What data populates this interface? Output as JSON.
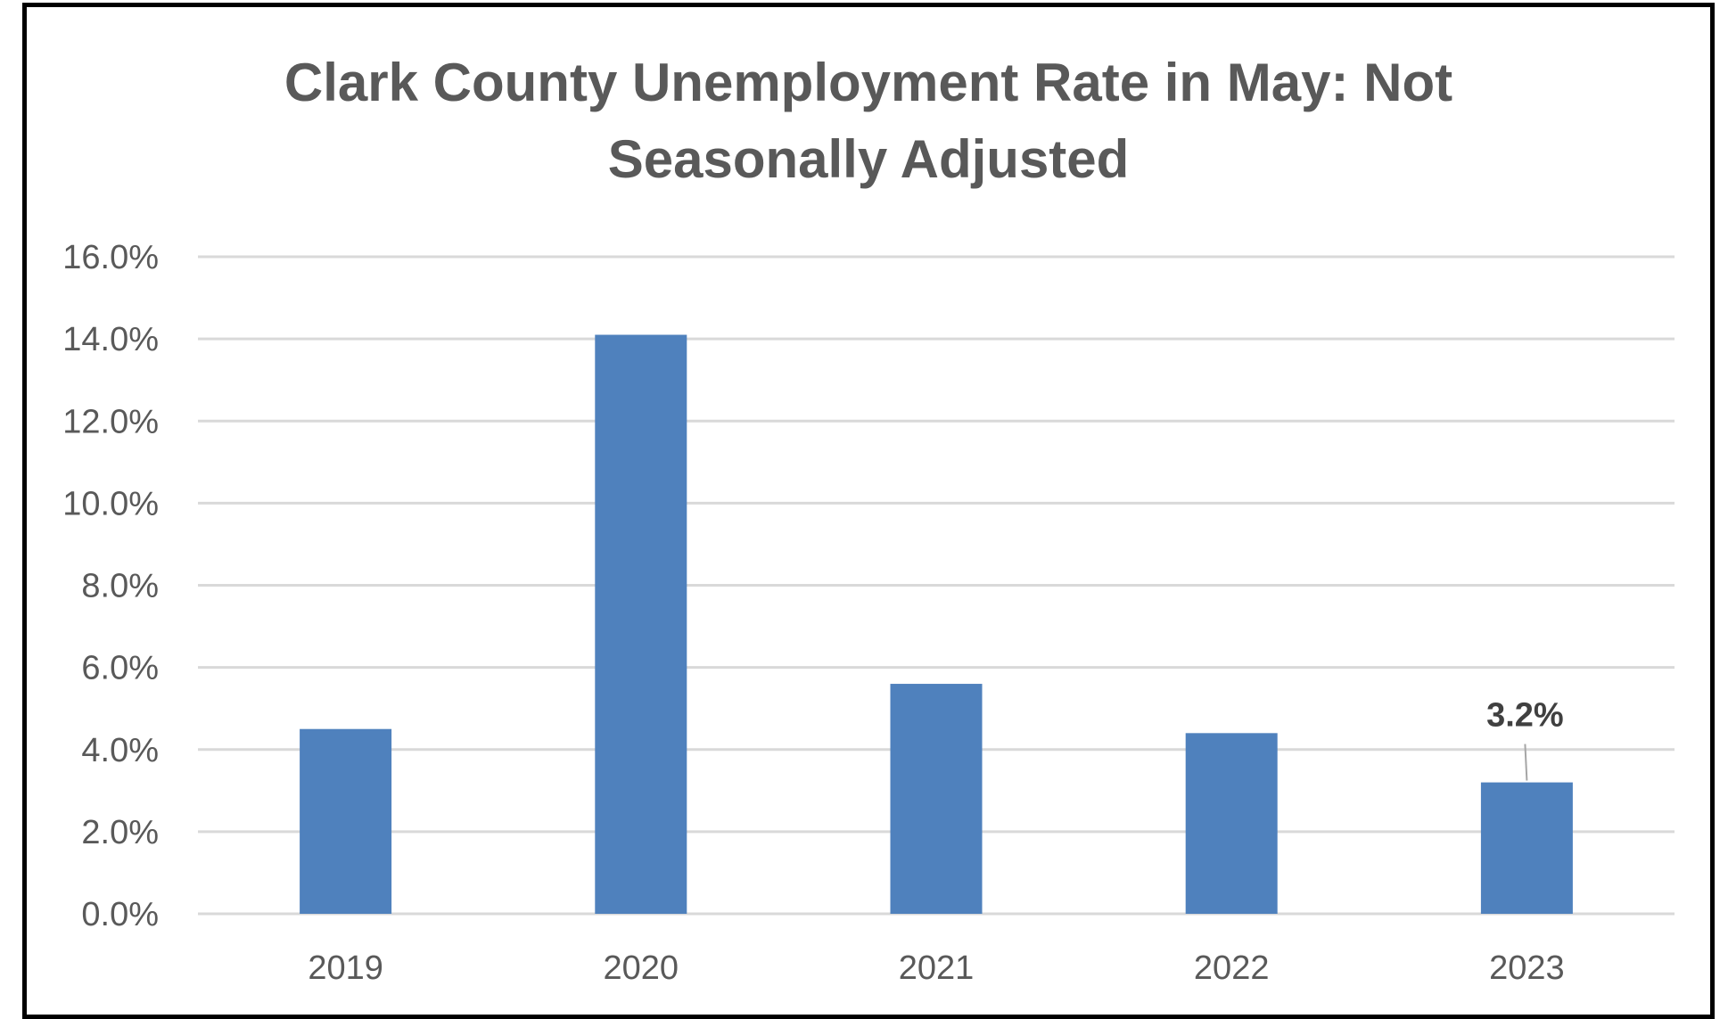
{
  "chart_data": {
    "type": "bar",
    "title_lines": [
      "Clark County Unemployment Rate in May: Not",
      "Seasonally Adjusted"
    ],
    "xlabel": "",
    "ylabel": "",
    "categories": [
      "2019",
      "2020",
      "2021",
      "2022",
      "2023"
    ],
    "values": [
      4.5,
      14.1,
      5.6,
      4.4,
      3.2
    ],
    "ylim": [
      0,
      16
    ],
    "yticks": [
      0,
      2,
      4,
      6,
      8,
      10,
      12,
      14,
      16
    ],
    "ytick_labels": [
      "0.0%",
      "2.0%",
      "4.0%",
      "6.0%",
      "8.0%",
      "10.0%",
      "12.0%",
      "14.0%",
      "16.0%"
    ],
    "data_labels": [
      {
        "category": "2023",
        "text": "3.2%"
      }
    ],
    "grid": true,
    "legend": "none",
    "bar_color": "#4f81bd",
    "grid_color": "#d9d9d9",
    "text_color": "#595959"
  }
}
